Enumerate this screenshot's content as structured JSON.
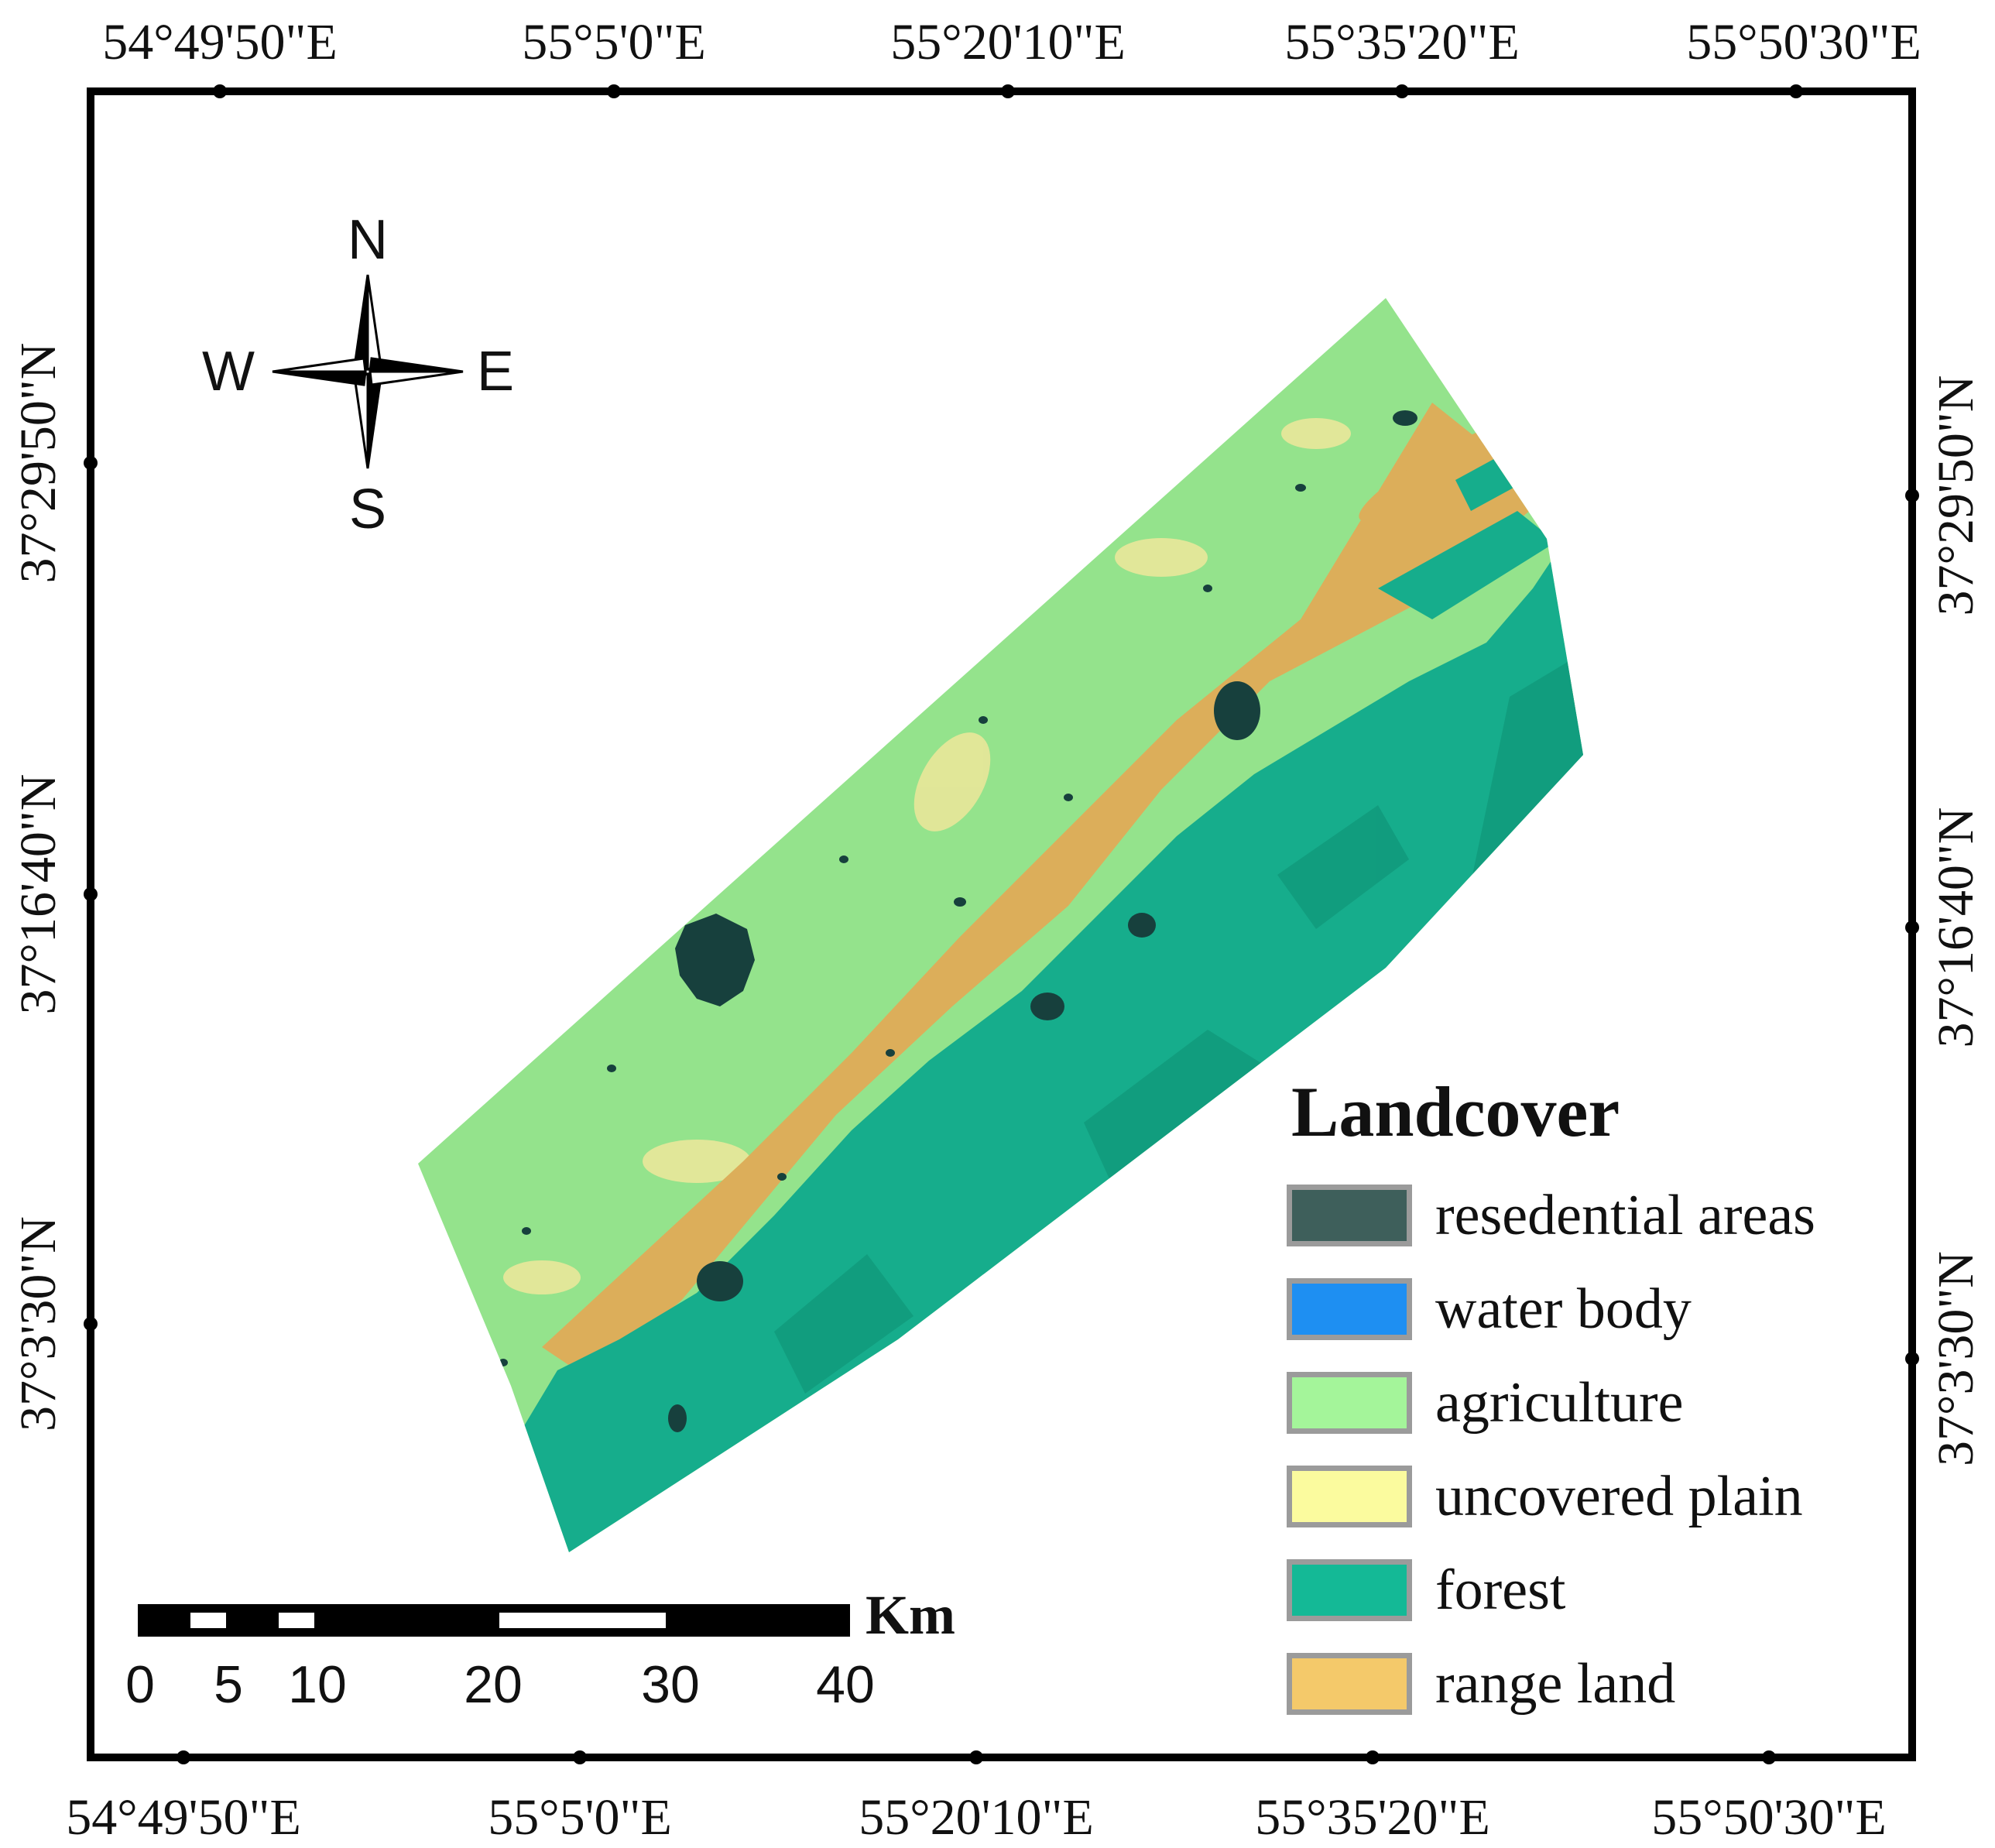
{
  "coords": {
    "top": [
      "54°49'50\"E",
      "55°5'0\"E",
      "55°20'10\"E",
      "55°35'20\"E",
      "55°50'30\"E"
    ],
    "bottom": [
      "54°49'50\"E",
      "55°5'0\"E",
      "55°20'10\"E",
      "55°35'20\"E",
      "55°50'30\"E"
    ],
    "left": [
      "37°29'50\"N",
      "37°16'40\"N",
      "37°3'30\"N"
    ],
    "right": [
      "37°29'50\"N",
      "37°16'40\"N",
      "37°3'30\"N"
    ]
  },
  "compass": {
    "n": "N",
    "s": "S",
    "e": "E",
    "w": "W",
    "icon": "north-arrow-icon"
  },
  "legend": {
    "title": "Landcover",
    "items": [
      {
        "label": "resedential areas",
        "color": "#3e5f5b"
      },
      {
        "label": "water body",
        "color": "#1e8ff2"
      },
      {
        "label": "agriculture",
        "color": "#a4f59a"
      },
      {
        "label": "uncovered plain",
        "color": "#fbfb9e"
      },
      {
        "label": "forest",
        "color": "#14b996"
      },
      {
        "label": "range land",
        "color": "#f4c96a"
      }
    ]
  },
  "scale": {
    "unit": "Km",
    "ticks": [
      "0",
      "5",
      "10",
      "20",
      "30",
      "40"
    ]
  }
}
